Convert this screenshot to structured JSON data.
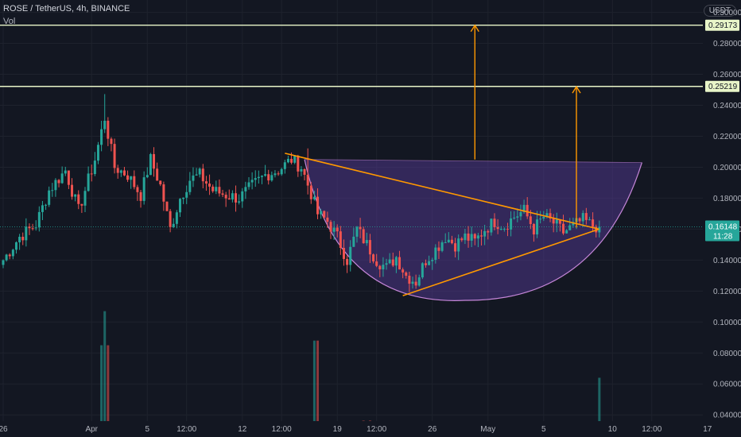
{
  "header": {
    "symbol": "ROSE / TetherUS, 4h, BINANCE",
    "volume_label": "Vol",
    "currency": "USDT"
  },
  "colors": {
    "background": "#131722",
    "up": "#26a69a",
    "down": "#ef5350",
    "drawing": "#ff9800",
    "level_line": "#e8f5c8",
    "cup_fill": "#5b3fa0",
    "cup_stroke": "#c586d8",
    "price_badge": "#26a69a"
  },
  "chart_data": {
    "type": "candlestick",
    "symbol": "ROSE / TetherUS",
    "interval": "4h",
    "exchange": "BINANCE",
    "ylim": [
      0.036,
      0.308
    ],
    "y_ticks": [
      "0.30000",
      "0.28000",
      "0.26000",
      "0.24000",
      "0.22000",
      "0.20000",
      "0.18000",
      "0.16000",
      "0.14000",
      "0.12000",
      "0.10000",
      "0.08000",
      "0.06000",
      "0.04000"
    ],
    "x_ticks": [
      "26",
      "Apr",
      "5",
      "12:00",
      "12",
      "12:00",
      "19",
      "12:00",
      "26",
      "May",
      "5",
      "10",
      "12:00",
      "17"
    ],
    "x_tick_bars": [
      0,
      27,
      44,
      56,
      73,
      85,
      102,
      114,
      131,
      148,
      165,
      186,
      198,
      215
    ],
    "bar_count": 183,
    "anchor_closes": [
      [
        0,
        0.14
      ],
      [
        5,
        0.155
      ],
      [
        10,
        0.163
      ],
      [
        14,
        0.185
      ],
      [
        19,
        0.198
      ],
      [
        23,
        0.172
      ],
      [
        28,
        0.205
      ],
      [
        31,
        0.232
      ],
      [
        34,
        0.2
      ],
      [
        38,
        0.195
      ],
      [
        42,
        0.182
      ],
      [
        45,
        0.205
      ],
      [
        48,
        0.188
      ],
      [
        51,
        0.16
      ],
      [
        54,
        0.18
      ],
      [
        57,
        0.192
      ],
      [
        60,
        0.195
      ],
      [
        64,
        0.185
      ],
      [
        68,
        0.182
      ],
      [
        72,
        0.18
      ],
      [
        76,
        0.188
      ],
      [
        80,
        0.195
      ],
      [
        84,
        0.198
      ],
      [
        88,
        0.205
      ],
      [
        91,
        0.2
      ],
      [
        94,
        0.183
      ],
      [
        96,
        0.17
      ],
      [
        99,
        0.165
      ],
      [
        102,
        0.155
      ],
      [
        105,
        0.14
      ],
      [
        108,
        0.16
      ],
      [
        111,
        0.15
      ],
      [
        114,
        0.14
      ],
      [
        117,
        0.135
      ],
      [
        120,
        0.142
      ],
      [
        123,
        0.13
      ],
      [
        126,
        0.126
      ],
      [
        129,
        0.14
      ],
      [
        132,
        0.147
      ],
      [
        135,
        0.155
      ],
      [
        138,
        0.15
      ],
      [
        141,
        0.155
      ],
      [
        144,
        0.152
      ],
      [
        147,
        0.16
      ],
      [
        150,
        0.165
      ],
      [
        153,
        0.162
      ],
      [
        156,
        0.168
      ],
      [
        159,
        0.172
      ],
      [
        162,
        0.16
      ],
      [
        165,
        0.168
      ],
      [
        168,
        0.164
      ],
      [
        171,
        0.158
      ],
      [
        174,
        0.162
      ],
      [
        177,
        0.166
      ],
      [
        180,
        0.162
      ],
      [
        182,
        0.16148
      ]
    ],
    "volume_range": [
      0.01,
      0.107
    ],
    "last_price": "0.16148",
    "countdown": "11:28",
    "levels": [
      {
        "label": "0.29173",
        "value": 0.29173
      },
      {
        "label": "0.25219",
        "value": 0.25219
      }
    ],
    "annotations": {
      "triangle": {
        "upper": [
          [
            86,
            0.209
          ],
          [
            179,
            0.16
          ]
        ],
        "lower": [
          [
            122,
            0.117
          ],
          [
            179,
            0.16
          ]
        ]
      },
      "cup": {
        "left": [
          92,
          0.205
        ],
        "bottom": [
          141,
          0.114
        ],
        "right": [
          195,
          0.203
        ]
      },
      "arrows": [
        {
          "bar": 144,
          "from": 0.205,
          "to": 0.2917
        },
        {
          "bar": 175,
          "from": 0.161,
          "to": 0.252
        }
      ]
    }
  }
}
